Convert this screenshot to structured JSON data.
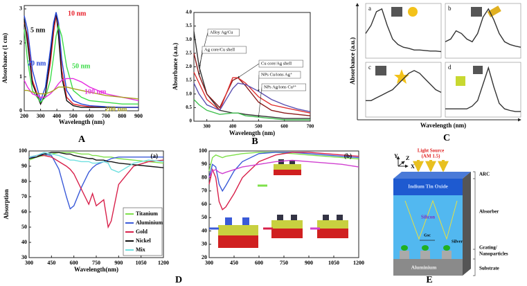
{
  "chart_data": [
    {
      "type": "line",
      "ylabel": "Absorbance (1 cm)",
      "xlabel": "Wavelength (nm)",
      "figure_label": "A",
      "xlim": [
        200,
        900
      ],
      "ylim": [
        0,
        3.1
      ],
      "xticks": [
        200,
        300,
        400,
        500,
        600,
        700,
        800,
        900
      ],
      "yticks": [
        0,
        1,
        2,
        3
      ],
      "x": [
        200,
        220,
        250,
        300,
        330,
        360,
        380,
        395,
        410,
        430,
        460,
        500,
        550,
        600,
        700,
        800,
        900
      ],
      "series": [
        {
          "name": "10 nm",
          "color": "#e8202a",
          "values": [
            2.6,
            2.2,
            0.9,
            0.2,
            0.5,
            1.4,
            2.3,
            2.8,
            2.4,
            1.2,
            0.4,
            0.2,
            0.15,
            0.12,
            0.1,
            0.1,
            0.1
          ]
        },
        {
          "name": "5 nm",
          "color": "#111111",
          "values": [
            2.7,
            2.0,
            0.8,
            0.2,
            0.5,
            1.6,
            2.5,
            2.9,
            2.2,
            1.0,
            0.3,
            0.15,
            0.1,
            0.1,
            0.1,
            0.1,
            0.1
          ]
        },
        {
          "name": "20 nm",
          "color": "#2546d8",
          "values": [
            2.8,
            2.4,
            1.2,
            0.3,
            0.7,
            1.8,
            2.6,
            2.9,
            2.6,
            1.5,
            0.6,
            0.3,
            0.2,
            0.15,
            0.12,
            0.1,
            0.1
          ]
        },
        {
          "name": "50 nm",
          "color": "#3ddc4a",
          "values": [
            2.4,
            1.5,
            0.6,
            0.25,
            0.4,
            0.9,
            1.6,
            2.2,
            2.5,
            2.2,
            1.3,
            0.6,
            0.4,
            0.3,
            0.25,
            0.2,
            0.2
          ]
        },
        {
          "name": "100 nm",
          "color": "#e62ee0",
          "values": [
            0.9,
            0.7,
            0.5,
            0.4,
            0.4,
            0.5,
            0.6,
            0.7,
            0.8,
            0.9,
            0.95,
            0.95,
            0.85,
            0.7,
            0.5,
            0.4,
            0.3
          ]
        },
        {
          "name": "200 nm",
          "color": "#a8a020",
          "values": [
            0.6,
            0.6,
            0.55,
            0.5,
            0.5,
            0.55,
            0.6,
            0.65,
            0.7,
            0.7,
            0.7,
            0.65,
            0.6,
            0.55,
            0.45,
            0.4,
            0.35
          ]
        }
      ]
    },
    {
      "type": "line",
      "ylabel": "Absorbance (a.u.)",
      "xlabel": "Wavelength (nm)",
      "figure_label": "B",
      "xlim": [
        250,
        700
      ],
      "ylim": [
        0,
        4
      ],
      "xticks": [
        300,
        400,
        500,
        600,
        700
      ],
      "yticks": [
        0,
        0.5,
        {
          "value": 1,
          "label": "1.0"
        },
        1.5,
        {
          "value": 2,
          "label": "2.0"
        },
        2.5,
        {
          "value": 3,
          "label": "3.0"
        },
        3.5,
        {
          "value": 4,
          "label": "4.0"
        }
      ],
      "x": [
        250,
        270,
        300,
        350,
        400,
        420,
        450,
        500,
        550,
        600,
        650,
        700
      ],
      "series": [
        {
          "name": "Alloy Ag/Cu",
          "color": "#333333",
          "values": [
            3.3,
            2.0,
            1.0,
            0.4,
            0.3,
            0.3,
            0.25,
            0.2,
            0.15,
            0.1,
            0.1,
            0.1
          ]
        },
        {
          "name": "Ag core/Cu shell",
          "color": "#8b1a1a",
          "values": [
            2.5,
            1.7,
            1.0,
            0.5,
            1.5,
            1.6,
            1.3,
            0.7,
            0.4,
            0.3,
            0.25,
            0.2
          ]
        },
        {
          "name": "Cu core/Ag shell",
          "color": "#e03030",
          "values": [
            1.8,
            1.4,
            0.8,
            0.4,
            1.6,
            1.6,
            1.4,
            0.9,
            0.6,
            0.5,
            0.4,
            0.3
          ]
        },
        {
          "name": "NPs Cu/ions Ag⁺",
          "color": "#5a4fb0",
          "values": [
            1.4,
            1.0,
            0.6,
            0.4,
            1.2,
            1.4,
            1.35,
            1.1,
            0.8,
            0.6,
            0.45,
            0.35
          ]
        },
        {
          "name": "NPs Ag/ions Cu²⁺",
          "color": "#40c050",
          "values": [
            0.8,
            0.6,
            0.4,
            0.25,
            0.3,
            0.3,
            0.2,
            0.15,
            0.1,
            0.05,
            0.05,
            0.05
          ]
        }
      ]
    },
    {
      "type": "multi",
      "ylabel": "Absorbance (a.u.)",
      "xlabel": "Wavelength (nm)",
      "figure_label": "C",
      "xlim": [
        400,
        1100
      ],
      "ylim": [
        0,
        1
      ],
      "x": [
        400,
        450,
        500,
        550,
        600,
        650,
        700,
        750,
        800,
        850,
        900,
        950,
        1000,
        1050,
        1100
      ],
      "subplots": [
        {
          "label": "a",
          "series": [
            {
              "color": "#333333",
              "values": [
                0.45,
                0.6,
                0.85,
                0.9,
                0.6,
                0.35,
                0.25,
                0.2,
                0.18,
                0.15,
                0.15,
                0.14,
                0.13,
                0.13,
                0.12
              ]
            }
          ]
        },
        {
          "label": "b",
          "series": [
            {
              "color": "#333333",
              "values": [
                0.3,
                0.35,
                0.5,
                0.45,
                0.35,
                0.3,
                0.45,
                0.75,
                0.9,
                0.7,
                0.45,
                0.3,
                0.25,
                0.22,
                0.2
              ]
            }
          ]
        },
        {
          "label": "c",
          "series": [
            {
              "color": "#333333",
              "values": [
                0.3,
                0.3,
                0.35,
                0.4,
                0.45,
                0.5,
                0.6,
                0.7,
                0.8,
                0.85,
                0.8,
                0.7,
                0.6,
                0.5,
                0.45
              ]
            }
          ]
        },
        {
          "label": "d",
          "series": [
            {
              "color": "#333333",
              "values": [
                0.15,
                0.15,
                0.15,
                0.15,
                0.15,
                0.2,
                0.3,
                0.6,
                0.9,
                0.55,
                0.25,
                0.15,
                0.12,
                0.1,
                0.1
              ]
            }
          ]
        }
      ]
    },
    {
      "type": "line",
      "ylabel": "Absorption",
      "xlabel": "Wavelength(nm)",
      "figure_label": "D",
      "plot_label": "(a)",
      "legend": "lower right",
      "xlim": [
        300,
        1200
      ],
      "ylim": [
        30,
        100
      ],
      "xticks": [
        300,
        450,
        600,
        750,
        900,
        1050,
        1200
      ],
      "yticks": [
        30,
        40,
        50,
        60,
        70,
        80,
        90,
        100
      ],
      "x": [
        300,
        350,
        400,
        450,
        500,
        550,
        575,
        600,
        650,
        700,
        725,
        750,
        800,
        830,
        850,
        900,
        1000,
        1100,
        1200
      ],
      "series": [
        {
          "name": "Titanium",
          "color": "#7ee04a",
          "values": [
            94,
            96,
            97,
            98,
            99,
            99,
            99,
            99,
            98,
            98,
            97,
            97,
            96,
            96,
            96,
            95,
            94,
            93,
            92
          ]
        },
        {
          "name": "Aluminium",
          "color": "#3a5ad8",
          "values": [
            95,
            97,
            98,
            97,
            88,
            70,
            62,
            64,
            76,
            86,
            89,
            91,
            93,
            94,
            95,
            96,
            96,
            96,
            96
          ]
        },
        {
          "name": "Gold",
          "color": "#d8204a",
          "values": [
            96,
            97,
            97,
            96,
            93,
            90,
            88,
            85,
            75,
            65,
            72,
            64,
            68,
            50,
            54,
            78,
            90,
            93,
            94
          ]
        },
        {
          "name": "Nickel",
          "color": "#111111",
          "values": [
            95,
            96,
            98,
            99,
            99,
            98,
            98,
            97,
            96,
            95,
            95,
            94,
            94,
            93,
            93,
            92,
            91,
            90,
            89
          ]
        },
        {
          "name": "Mix",
          "color": "#6fe0e0",
          "values": [
            96,
            97,
            99,
            98,
            97,
            95,
            94,
            94,
            93,
            93,
            92,
            92,
            93,
            92,
            88,
            86,
            92,
            94,
            93
          ]
        }
      ]
    },
    {
      "type": "line",
      "plot_label": "(b)",
      "xlim": [
        300,
        1200
      ],
      "ylim": [
        20,
        100
      ],
      "xticks": [
        300,
        450,
        600,
        750,
        900,
        1050,
        1200
      ],
      "yticks": [
        20,
        30,
        40,
        50,
        60,
        70,
        80,
        90,
        100
      ],
      "x": [
        300,
        320,
        340,
        360,
        380,
        400,
        450,
        500,
        600,
        700,
        800,
        900,
        1000,
        1100,
        1200
      ],
      "series": [
        {
          "color": "#7ee04a",
          "values": [
            85,
            95,
            97,
            96,
            95,
            96,
            97,
            98,
            99,
            99,
            98,
            97,
            96,
            95,
            94
          ]
        },
        {
          "color": "#3a5ad8",
          "values": [
            80,
            90,
            88,
            75,
            70,
            74,
            85,
            92,
            98,
            99,
            99,
            98,
            97,
            96,
            95
          ]
        },
        {
          "color": "#d8204a",
          "values": [
            75,
            86,
            80,
            62,
            56,
            58,
            68,
            80,
            92,
            97,
            99,
            99,
            98,
            97,
            96
          ]
        },
        {
          "color": "#d040d0",
          "values": [
            80,
            85,
            86,
            84,
            83,
            84,
            86,
            88,
            90,
            92,
            93,
            92,
            91,
            90,
            88
          ]
        }
      ]
    }
  ],
  "diagram": {
    "axis_y": "Y",
    "axis_z": "Z",
    "axis_x": "X",
    "light_source": "Light Source",
    "light_spec": "(AM 1.5)",
    "ito": "Indium Tin Oxide",
    "silicon": "Silicon",
    "gap": "Gsc",
    "silver": "Silver",
    "aluminium": "Aluminium",
    "arc": "ARC",
    "absorber": "Absorber",
    "grating": "Grating/",
    "nanoparticles": "Nanoparticles",
    "substrate": "Substrate",
    "figure_label": "E"
  }
}
